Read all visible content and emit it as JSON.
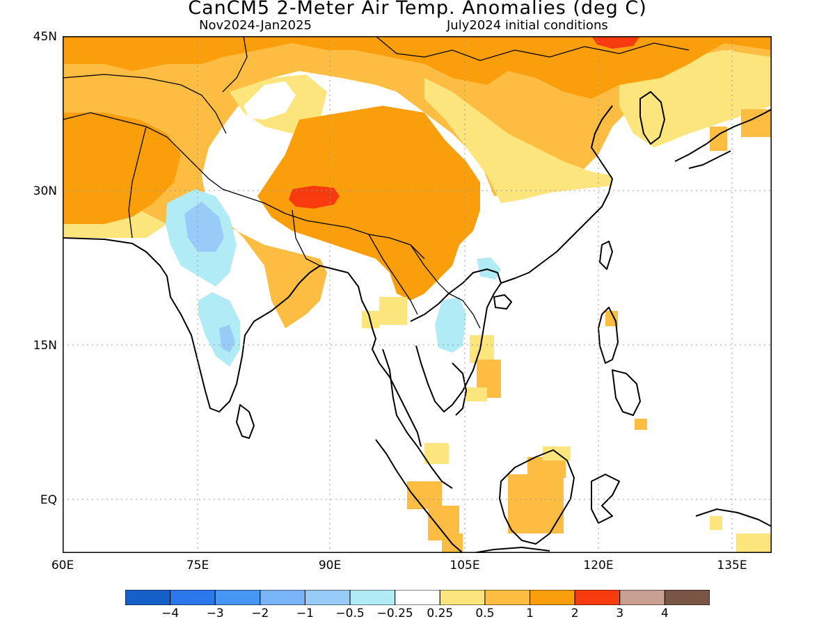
{
  "title": "CanCM5 2-Meter Air Temp. Anomalies (deg C)",
  "subtitle_left": "Nov2024-Jan2025",
  "subtitle_right": "July2024 initial conditions",
  "lat_labels": [
    "45N",
    "30N",
    "15N",
    "EQ"
  ],
  "lon_labels": [
    "60E",
    "75E",
    "90E",
    "105E",
    "120E",
    "135E"
  ],
  "colorbar": {
    "colors": [
      "#1560c8",
      "#2a78ec",
      "#4697f5",
      "#78b4f7",
      "#98cbf8",
      "#b1ecf6",
      "#ffffff",
      "#fde57e",
      "#fcbd42",
      "#fb9e0b",
      "#f73b0f",
      "#c8a091",
      "#795545"
    ],
    "labels": [
      "-4",
      "-3",
      "-2",
      "-1",
      "-0.5",
      "-0.25",
      "0.25",
      "0.5",
      "1",
      "2",
      "3",
      "4"
    ]
  },
  "palette": {
    "yellow": "#fde57e",
    "light_orange": "#fcbd42",
    "orange": "#fb9e0b",
    "red": "#f73b0f",
    "light_blue": "#b1ecf6",
    "mid_blue": "#98cbf8"
  }
}
